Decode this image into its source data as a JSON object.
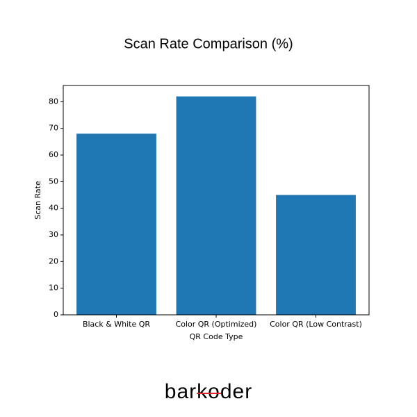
{
  "chart_data": {
    "type": "bar",
    "title": "Scan Rate Comparison (%)",
    "categories": [
      "Black & White QR",
      "Color QR (Optimized)",
      "Color QR (Low Contrast)"
    ],
    "values": [
      68,
      82,
      45
    ],
    "color": "#1f77b4",
    "xlabel": "QR Code Type",
    "ylabel": "Scan Rate",
    "ylim": [
      0,
      86.1
    ],
    "yticks": [
      0,
      10,
      20,
      30,
      40,
      50,
      60,
      70,
      80
    ]
  },
  "footer": {
    "logo": "barkoder"
  }
}
